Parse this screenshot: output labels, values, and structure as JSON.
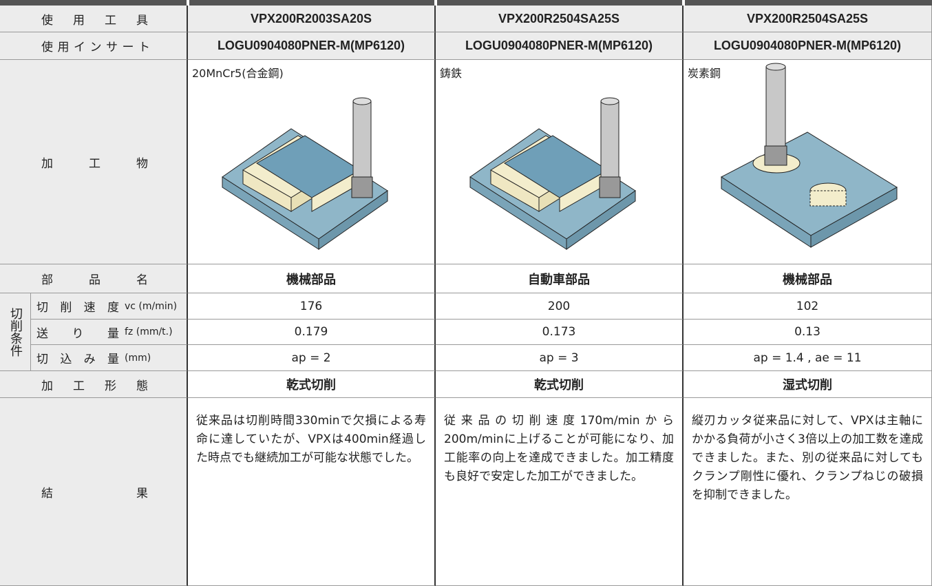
{
  "labels": {
    "tool": "使 用 工 具",
    "insert": "使用インサート",
    "workpiece": "加 工 物",
    "part": "部 品 名",
    "conditions": "切削条件",
    "speed": {
      "label": "切 削 速 度",
      "unit": "vc (m/min)"
    },
    "feed": {
      "label": "送 り 量",
      "unit": "fz (mm/t.)"
    },
    "depth": {
      "label": "切 込 み 量",
      "unit": "(mm)"
    },
    "mode": "加 工 形 態",
    "result": "結 果"
  },
  "cases": [
    {
      "tool": "VPX200R2003SA20S",
      "insert": "LOGU0904080PNER-M(MP6120)",
      "material": "20MnCr5(合金鋼)",
      "part": "機械部品",
      "speed": "176",
      "feed": "0.179",
      "depth": "ap = 2",
      "mode": "乾式切削",
      "result": "従来品は切削時間330minで欠損による寿命に達していたが、VPXは400min経過した時点でも継続加工が可能な状態でした。"
    },
    {
      "tool": "VPX200R2504SA25S",
      "insert": "LOGU0904080PNER-M(MP6120)",
      "material": "鋳鉄",
      "part": "自動車部品",
      "speed": "200",
      "feed": "0.173",
      "depth": "ap = 3",
      "mode": "乾式切削",
      "result": "従来品の切削速度170m/minから200m/minに上げることが可能になり、加工能率の向上を達成できました。加工精度も良好で安定した加工ができました。"
    },
    {
      "tool": "VPX200R2504SA25S",
      "insert": "LOGU0904080PNER-M(MP6120)",
      "material": "炭素鋼",
      "part": "機械部品",
      "speed": "102",
      "feed": "0.13",
      "depth": "ap = 1.4 , ae = 11",
      "mode": "湿式切削",
      "result": "縦刃カッタ従来品に対して、VPXは主軸にかかる負荷が小さく3倍以上の加工数を達成できました。また、別の従来品に対してもクランプ剛性に優れ、クランプねじの破損を抑制できました。"
    }
  ]
}
